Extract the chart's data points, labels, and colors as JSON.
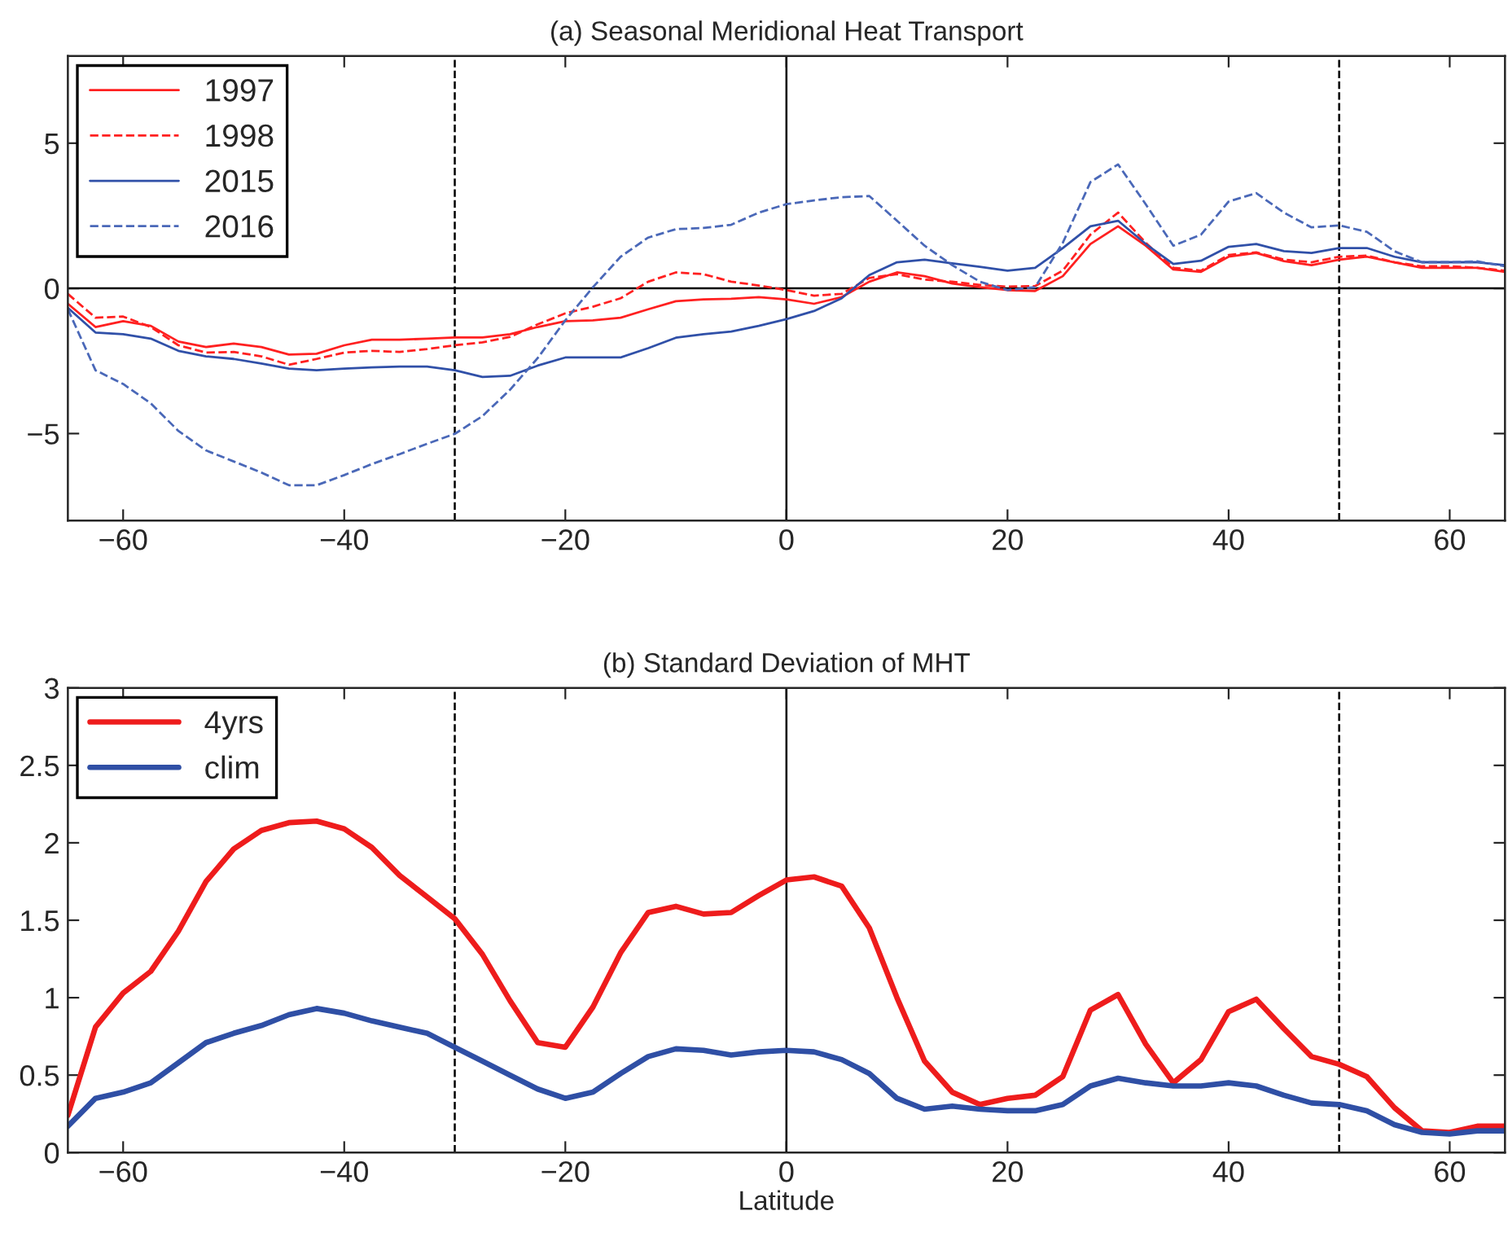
{
  "chart_data": [
    {
      "type": "line",
      "title": "(a) Seasonal Meridional Heat Transport",
      "x": [
        -65,
        -62.5,
        -60,
        -57.5,
        -55,
        -52.5,
        -50,
        -47.5,
        -45,
        -42.5,
        -40,
        -37.5,
        -35,
        -32.5,
        -30,
        -27.5,
        -25,
        -22.5,
        -20,
        -17.5,
        -15,
        -12.5,
        -10,
        -7.5,
        -5,
        -2.5,
        0,
        2.5,
        5,
        7.5,
        10,
        12.5,
        15,
        17.5,
        20,
        22.5,
        25,
        27.5,
        30,
        32.5,
        35,
        37.5,
        40,
        42.5,
        45,
        47.5,
        50,
        52.5,
        55,
        57.5,
        60,
        62.5,
        65
      ],
      "series": [
        {
          "name": "1997",
          "color": "#ff2020",
          "line_style": "solid",
          "values": [
            -0.53,
            -1.33,
            -1.13,
            -1.29,
            -1.83,
            -2.02,
            -1.9,
            -2.02,
            -2.28,
            -2.25,
            -1.96,
            -1.77,
            -1.77,
            -1.73,
            -1.69,
            -1.69,
            -1.58,
            -1.33,
            -1.13,
            -1.1,
            -1.01,
            -0.72,
            -0.44,
            -0.38,
            -0.36,
            -0.3,
            -0.38,
            -0.53,
            -0.3,
            0.23,
            0.55,
            0.42,
            0.17,
            0.04,
            -0.06,
            -0.09,
            0.42,
            1.53,
            2.14,
            1.47,
            0.65,
            0.57,
            1.09,
            1.22,
            0.94,
            0.8,
            0.99,
            1.09,
            0.9,
            0.71,
            0.71,
            0.71,
            0.57
          ]
        },
        {
          "name": "1998",
          "color": "#ff2020",
          "line_style": "dashed",
          "values": [
            -0.19,
            -1.01,
            -0.97,
            -1.33,
            -1.96,
            -2.21,
            -2.19,
            -2.34,
            -2.63,
            -2.43,
            -2.21,
            -2.15,
            -2.19,
            -2.09,
            -1.96,
            -1.86,
            -1.67,
            -1.24,
            -0.86,
            -0.63,
            -0.34,
            0.23,
            0.55,
            0.49,
            0.23,
            0.1,
            -0.06,
            -0.25,
            -0.19,
            0.36,
            0.49,
            0.3,
            0.23,
            0.12,
            0.06,
            0.08,
            0.61,
            1.85,
            2.61,
            1.57,
            0.71,
            0.61,
            1.15,
            1.24,
            0.99,
            0.9,
            1.09,
            1.13,
            0.9,
            0.76,
            0.76,
            0.71,
            0.61
          ]
        },
        {
          "name": "2015",
          "color": "#3050a8",
          "line_style": "solid",
          "values": [
            -0.67,
            -1.52,
            -1.58,
            -1.73,
            -2.15,
            -2.34,
            -2.43,
            -2.59,
            -2.76,
            -2.82,
            -2.76,
            -2.72,
            -2.69,
            -2.69,
            -2.82,
            -3.05,
            -3.01,
            -2.66,
            -2.38,
            -2.38,
            -2.38,
            -2.06,
            -1.7,
            -1.58,
            -1.49,
            -1.29,
            -1.06,
            -0.78,
            -0.34,
            0.46,
            0.9,
            0.99,
            0.86,
            0.74,
            0.61,
            0.71,
            1.39,
            2.14,
            2.33,
            1.53,
            0.84,
            0.95,
            1.43,
            1.53,
            1.28,
            1.22,
            1.39,
            1.39,
            1.09,
            0.9,
            0.9,
            0.9,
            0.8
          ]
        },
        {
          "name": "2016",
          "color": "#4a68b8",
          "line_style": "dashed",
          "values": [
            -0.72,
            -2.82,
            -3.29,
            -3.96,
            -4.91,
            -5.58,
            -5.96,
            -6.34,
            -6.78,
            -6.78,
            -6.43,
            -6.05,
            -5.71,
            -5.35,
            -5.01,
            -4.4,
            -3.49,
            -2.4,
            -1.1,
            0.04,
            1.09,
            1.75,
            2.04,
            2.08,
            2.19,
            2.61,
            2.9,
            3.03,
            3.14,
            3.18,
            2.33,
            1.47,
            0.8,
            0.23,
            -0.06,
            0.04,
            1.57,
            3.66,
            4.27,
            2.9,
            1.47,
            1.85,
            2.99,
            3.28,
            2.61,
            2.1,
            2.17,
            1.95,
            1.28,
            0.9,
            0.9,
            0.93,
            0.76
          ]
        }
      ],
      "xlim": [
        -65,
        65
      ],
      "ylim": [
        -8,
        8
      ],
      "xticks": [
        {
          "value": -60,
          "label": "−60"
        },
        {
          "value": -40,
          "label": "−40"
        },
        {
          "value": -20,
          "label": "−20"
        },
        0,
        20,
        40,
        60
      ],
      "yticks": [
        {
          "value": -5,
          "label": "−5"
        },
        0,
        5
      ],
      "ref_lines": [
        {
          "axis": "x",
          "value": -30,
          "color": "#000000",
          "line_style": "dashed"
        },
        {
          "axis": "x",
          "value": 50,
          "color": "#000000",
          "line_style": "dashed"
        },
        {
          "axis": "x",
          "value": 0,
          "color": "#000000",
          "line_style": "solid"
        },
        {
          "axis": "y",
          "value": 0,
          "color": "#000000",
          "line_style": "solid"
        }
      ],
      "legend": "top left",
      "grid": false
    },
    {
      "type": "line",
      "title": "(b) Standard Deviation of MHT",
      "xlabel": "Latitude",
      "x": [
        -65,
        -62.5,
        -60,
        -57.5,
        -55,
        -52.5,
        -50,
        -47.5,
        -45,
        -42.5,
        -40,
        -37.5,
        -35,
        -32.5,
        -30,
        -27.5,
        -25,
        -22.5,
        -20,
        -17.5,
        -15,
        -12.5,
        -10,
        -7.5,
        -5,
        -2.5,
        0,
        2.5,
        5,
        7.5,
        10,
        12.5,
        15,
        17.5,
        20,
        22.5,
        25,
        27.5,
        30,
        32.5,
        35,
        37.5,
        40,
        42.5,
        45,
        47.5,
        50,
        52.5,
        55,
        57.5,
        60,
        62.5,
        65
      ],
      "series": [
        {
          "name": "4yrs",
          "color": "#ee1c1c",
          "line_style": "solid",
          "values": [
            0.24,
            0.81,
            1.03,
            1.17,
            1.43,
            1.75,
            1.96,
            2.08,
            2.13,
            2.14,
            2.09,
            1.97,
            1.79,
            1.65,
            1.51,
            1.28,
            0.98,
            0.71,
            0.68,
            0.94,
            1.29,
            1.55,
            1.59,
            1.54,
            1.55,
            1.66,
            1.76,
            1.78,
            1.72,
            1.45,
            1.0,
            0.59,
            0.39,
            0.31,
            0.35,
            0.37,
            0.49,
            0.92,
            1.02,
            0.7,
            0.45,
            0.6,
            0.91,
            0.99,
            0.8,
            0.62,
            0.57,
            0.49,
            0.29,
            0.14,
            0.13,
            0.17,
            0.17
          ]
        },
        {
          "name": "clim",
          "color": "#2f4fa5",
          "line_style": "solid",
          "values": [
            0.17,
            0.35,
            0.39,
            0.45,
            0.58,
            0.71,
            0.77,
            0.82,
            0.89,
            0.93,
            0.9,
            0.85,
            0.81,
            0.77,
            0.68,
            0.59,
            0.5,
            0.41,
            0.35,
            0.39,
            0.51,
            0.62,
            0.67,
            0.66,
            0.63,
            0.65,
            0.66,
            0.65,
            0.6,
            0.51,
            0.35,
            0.28,
            0.3,
            0.28,
            0.27,
            0.27,
            0.31,
            0.43,
            0.48,
            0.45,
            0.43,
            0.43,
            0.45,
            0.43,
            0.37,
            0.32,
            0.31,
            0.27,
            0.18,
            0.13,
            0.12,
            0.14,
            0.14
          ]
        }
      ],
      "xlim": [
        -65,
        65
      ],
      "ylim": [
        0,
        3
      ],
      "xticks": [
        {
          "value": -60,
          "label": "−60"
        },
        {
          "value": -40,
          "label": "−40"
        },
        {
          "value": -20,
          "label": "−20"
        },
        0,
        20,
        40,
        60
      ],
      "yticks": [
        0,
        0.5,
        1,
        1.5,
        2,
        2.5,
        3
      ],
      "ref_lines": [
        {
          "axis": "x",
          "value": -30,
          "color": "#000000",
          "line_style": "dashed"
        },
        {
          "axis": "x",
          "value": 50,
          "color": "#000000",
          "line_style": "dashed"
        },
        {
          "axis": "x",
          "value": 0,
          "color": "#000000",
          "line_style": "solid"
        }
      ],
      "legend": "top left",
      "grid": false
    }
  ]
}
